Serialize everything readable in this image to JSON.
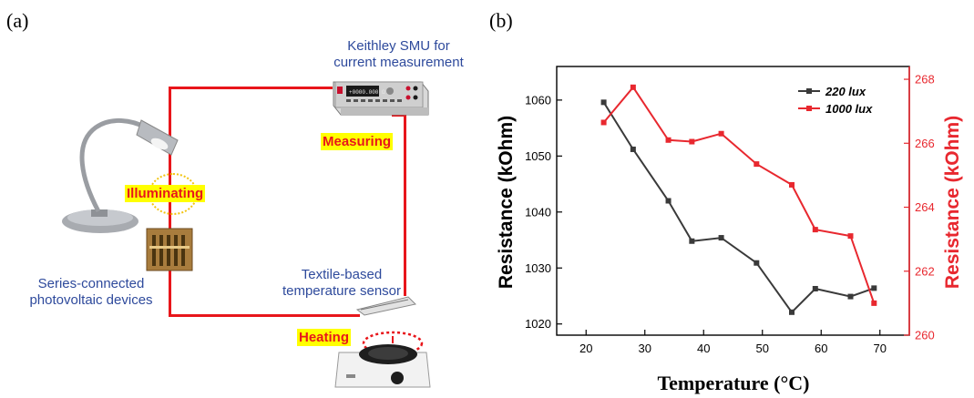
{
  "panel_a": {
    "label": "(a)",
    "smu_label": "Keithley SMU for\ncurrent measurement",
    "pv_label": "Series-connected\nphotovoltaic devices",
    "sensor_label": "Textile-based\ntemperature sensor",
    "measuring": "Measuring",
    "illuminating": "Illuminating",
    "heating": "Heating",
    "smu_display": "+0000.000 Ω",
    "colors": {
      "wire": "#e8161b",
      "highlight": "#ffff00",
      "text_blue": "#2e4a9c"
    }
  },
  "panel_b": {
    "label": "(b)"
  },
  "chart_data": {
    "type": "line",
    "xlabel": "Temperature (°C)",
    "ylabel_left": "Resistance (kOhm)",
    "ylabel_right": "Resistance (kOhm)",
    "xlim": [
      15,
      75
    ],
    "ylim_left": [
      1018,
      1066
    ],
    "ylim_right": [
      260,
      268.4
    ],
    "x_ticks": [
      20,
      30,
      40,
      50,
      60,
      70
    ],
    "y_ticks_left": [
      1020,
      1030,
      1040,
      1050,
      1060
    ],
    "y_ticks_right": [
      260,
      262,
      264,
      266,
      268
    ],
    "grid": false,
    "legend_position": "top-right",
    "series": [
      {
        "name": "220 lux",
        "axis": "left",
        "color": "#3a3a3a",
        "x": [
          23,
          28,
          34,
          38,
          43,
          49,
          55,
          59,
          65,
          69
        ],
        "y": [
          1059.6,
          1051.2,
          1042.0,
          1034.8,
          1035.4,
          1030.9,
          1022.1,
          1026.3,
          1024.9,
          1026.4
        ]
      },
      {
        "name": "1000 lux",
        "axis": "right",
        "color": "#e8282f",
        "x": [
          23,
          28,
          34,
          38,
          43,
          49,
          55,
          59,
          65,
          69
        ],
        "y": [
          266.65,
          267.75,
          266.1,
          266.05,
          266.3,
          265.35,
          264.7,
          263.3,
          263.1,
          261.0
        ]
      }
    ]
  }
}
